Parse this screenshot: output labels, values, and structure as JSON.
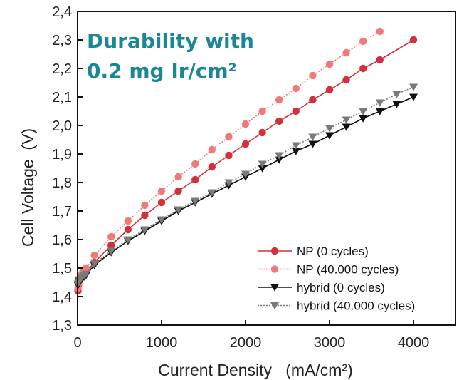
{
  "headline": {
    "line1": "Durability with",
    "line2": "0.2 mg Ir/cm²",
    "color": "#1b8796"
  },
  "chart_data": {
    "type": "line",
    "xlabel": "Current Density   (mA/cm²)",
    "ylabel": "Cell Voltage  (V)",
    "xlim": [
      0,
      4500
    ],
    "ylim": [
      1.3,
      2.4
    ],
    "xticks": [
      0,
      1000,
      2000,
      3000,
      4000
    ],
    "xtick_labels": [
      "0",
      "1000",
      "2000",
      "3000",
      "4000"
    ],
    "yticks": [
      1.3,
      1.4,
      1.5,
      1.6,
      1.7,
      1.8,
      1.9,
      2.0,
      2.1,
      2.2,
      2.3,
      2.4
    ],
    "ytick_labels": [
      "1,3",
      "1,4",
      "1,5",
      "1,6",
      "1,7",
      "1,8",
      "1,9",
      "2,0",
      "2,1",
      "2,2",
      "2,3",
      "2,4"
    ],
    "grid": false,
    "legend_position": "bottom-right",
    "series": [
      {
        "name": "NP (0 cycles)",
        "color": "#d2303a",
        "marker": "circle",
        "line_style": "solid",
        "x": [
          5,
          10,
          20,
          40,
          60,
          80,
          100,
          200,
          400,
          600,
          800,
          1000,
          1200,
          1400,
          1600,
          1800,
          2000,
          2200,
          2400,
          2600,
          2800,
          3000,
          3200,
          3400,
          3600,
          4000
        ],
        "y": [
          1.42,
          1.44,
          1.455,
          1.465,
          1.475,
          1.48,
          1.485,
          1.52,
          1.58,
          1.635,
          1.685,
          1.73,
          1.77,
          1.81,
          1.855,
          1.895,
          1.935,
          1.975,
          2.015,
          2.05,
          2.09,
          2.125,
          2.16,
          2.2,
          2.23,
          2.3
        ]
      },
      {
        "name": "NP (40.000 cycles)",
        "color": "#f07a7a",
        "marker": "circle",
        "line_style": "dotted",
        "x": [
          5,
          10,
          20,
          40,
          60,
          80,
          100,
          200,
          400,
          600,
          800,
          1000,
          1200,
          1400,
          1600,
          1800,
          2000,
          2200,
          2400,
          2600,
          2800,
          3000,
          3200,
          3400,
          3600
        ],
        "y": [
          1.43,
          1.445,
          1.46,
          1.475,
          1.485,
          1.495,
          1.5,
          1.545,
          1.61,
          1.665,
          1.72,
          1.77,
          1.82,
          1.865,
          1.915,
          1.96,
          2.005,
          2.05,
          2.09,
          2.13,
          2.175,
          2.215,
          2.255,
          2.295,
          2.33
        ]
      },
      {
        "name": "hybrid (0 cycles)",
        "color": "#111111",
        "marker": "triangle-down",
        "line_style": "solid",
        "x": [
          5,
          10,
          20,
          40,
          60,
          80,
          100,
          200,
          400,
          600,
          800,
          1000,
          1200,
          1400,
          1600,
          1800,
          2000,
          2200,
          2400,
          2600,
          2800,
          3000,
          3200,
          3400,
          3600,
          3800,
          4000
        ],
        "y": [
          1.44,
          1.445,
          1.455,
          1.46,
          1.465,
          1.47,
          1.475,
          1.51,
          1.555,
          1.595,
          1.63,
          1.665,
          1.7,
          1.73,
          1.76,
          1.79,
          1.82,
          1.85,
          1.88,
          1.91,
          1.935,
          1.965,
          1.995,
          2.025,
          2.05,
          2.075,
          2.1
        ]
      },
      {
        "name": "hybrid (40.000 cycles)",
        "color": "#7a7a7a",
        "marker": "triangle-down",
        "line_style": "dotted",
        "x": [
          5,
          10,
          20,
          40,
          60,
          80,
          100,
          200,
          400,
          600,
          800,
          1000,
          1200,
          1400,
          1600,
          1800,
          2000,
          2200,
          2400,
          2600,
          2800,
          3000,
          3200,
          3400,
          3600,
          3800,
          4000
        ],
        "y": [
          1.445,
          1.45,
          1.46,
          1.465,
          1.47,
          1.475,
          1.48,
          1.515,
          1.56,
          1.6,
          1.635,
          1.67,
          1.705,
          1.735,
          1.765,
          1.8,
          1.83,
          1.865,
          1.895,
          1.93,
          1.96,
          1.99,
          2.02,
          2.05,
          2.08,
          2.11,
          2.135
        ]
      }
    ]
  }
}
